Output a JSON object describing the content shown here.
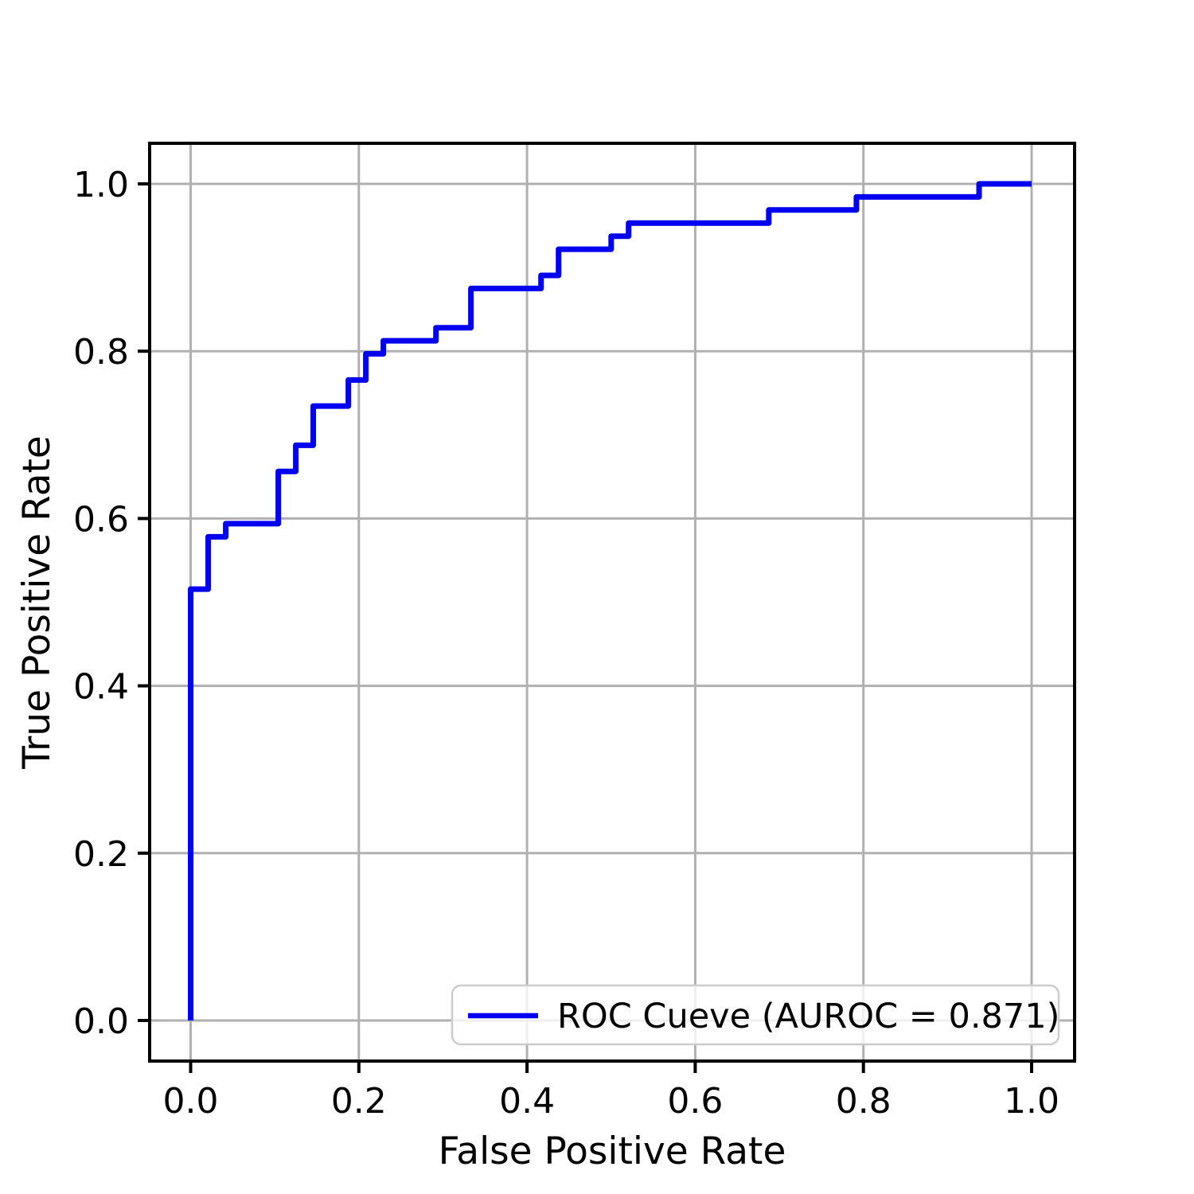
{
  "chart_data": {
    "type": "line",
    "subtype": "roc-step-curve",
    "title": "",
    "xlabel": "False Positive Rate",
    "ylabel": "True Positive Rate",
    "x_ticks": [
      0.0,
      0.2,
      0.4,
      0.6,
      0.8,
      1.0
    ],
    "y_ticks": [
      0.0,
      0.2,
      0.4,
      0.6,
      0.8,
      1.0
    ],
    "x_tick_labels": [
      "0.0",
      "0.2",
      "0.4",
      "0.6",
      "0.8",
      "1.0"
    ],
    "y_tick_labels": [
      "0.0",
      "0.2",
      "0.4",
      "0.6",
      "0.8",
      "1.0"
    ],
    "xlim": [
      -0.049,
      1.049
    ],
    "ylim": [
      -0.049,
      1.049
    ],
    "grid": true,
    "legend": {
      "position": "lower right",
      "label": "ROC Cueve (AUROC = 0.871)"
    },
    "auroc": 0.871,
    "series": [
      {
        "name": "ROC Cueve (AUROC = 0.871)",
        "x": [
          0.0,
          0.0,
          0.0208,
          0.0208,
          0.0417,
          0.0417,
          0.1042,
          0.1042,
          0.125,
          0.125,
          0.1458,
          0.1458,
          0.1875,
          0.1875,
          0.2083,
          0.2083,
          0.2292,
          0.2292,
          0.2917,
          0.2917,
          0.3333,
          0.3333,
          0.4167,
          0.4167,
          0.4375,
          0.4375,
          0.5,
          0.5,
          0.5208,
          0.5208,
          0.6875,
          0.6875,
          0.7917,
          0.7917,
          0.9375,
          0.9375,
          1.0
        ],
        "y": [
          0.0,
          0.5156,
          0.5156,
          0.5781,
          0.5781,
          0.5938,
          0.5938,
          0.6563,
          0.6563,
          0.6875,
          0.6875,
          0.7344,
          0.7344,
          0.7656,
          0.7656,
          0.7969,
          0.7969,
          0.8125,
          0.8125,
          0.8281,
          0.8281,
          0.875,
          0.875,
          0.8906,
          0.8906,
          0.9219,
          0.9219,
          0.9375,
          0.9375,
          0.9531,
          0.9531,
          0.9688,
          0.9688,
          0.9844,
          0.9844,
          1.0,
          1.0
        ]
      }
    ],
    "colors": {
      "curve": "#0000f0",
      "grid": "#b0b0b0",
      "spine": "#000000",
      "text": "#000000",
      "legend_border": "#cccccc",
      "legend_face": "rgba(255,255,255,0.8)"
    }
  }
}
